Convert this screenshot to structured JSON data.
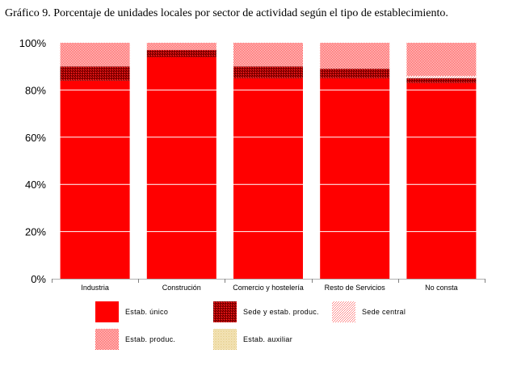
{
  "chart_data": {
    "type": "bar",
    "stacked": true,
    "percent": true,
    "title": "Gráfico 9. Porcentaje de unidades locales  por sector de actividad según el tipo de establecimiento.",
    "categories": [
      "Industria",
      "Construción",
      "Comercio y hostelería",
      "Resto de Servicios",
      "No consta"
    ],
    "series": [
      {
        "name": "Estab. único",
        "values": [
          84,
          94,
          85,
          85,
          83
        ],
        "color": "#ff0000",
        "pattern": "solid"
      },
      {
        "name": "Sede y estab. produc.",
        "values": [
          6,
          3,
          5,
          4,
          2
        ],
        "color": "#8b0000",
        "pattern": "dots-dark"
      },
      {
        "name": "Sede central",
        "values": [
          0,
          0,
          0,
          0,
          1
        ],
        "color": "#ffb0b0",
        "pattern": "dots-light"
      },
      {
        "name": "Estab. produc.",
        "values": [
          10,
          3,
          10,
          11,
          14
        ],
        "color": "#f07070",
        "pattern": "dots-medium"
      },
      {
        "name": "Estab. auxiliar",
        "values": [
          0,
          0,
          0,
          0,
          0
        ],
        "color": "#f2e0a8",
        "pattern": "dots-beige"
      }
    ],
    "ylim": [
      0,
      100
    ],
    "yticks": [
      "0%",
      "20%",
      "40%",
      "60%",
      "80%",
      "100%"
    ],
    "grid": true,
    "legend_position": "bottom"
  }
}
